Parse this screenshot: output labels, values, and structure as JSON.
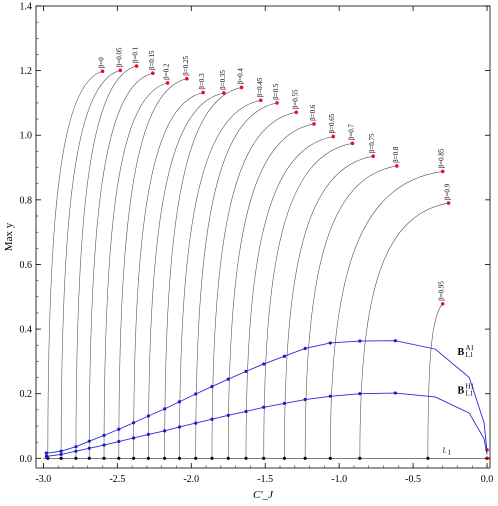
{
  "chart_data": {
    "type": "line",
    "xlabel": "C'_J",
    "ylabel": "Max y",
    "xlim": [
      -3.05,
      0.02
    ],
    "ylim": [
      -0.03,
      1.4
    ],
    "xticks": [
      -3.0,
      -2.5,
      -2.0,
      -1.5,
      -1.0,
      -0.5,
      0.0
    ],
    "xtick_labels": [
      "-3.0",
      "-2.5",
      "-2.0",
      "-1.5",
      "-1.0",
      "-0.5",
      "0.0"
    ],
    "yticks": [
      0.0,
      0.2,
      0.4,
      0.6,
      0.8,
      1.0,
      1.2,
      1.4
    ],
    "ytick_labels": [
      "0.0",
      "0.2",
      "0.4",
      "0.6",
      "0.8",
      "1.0",
      "1.2",
      "1.4"
    ],
    "grid": false,
    "colors": {
      "family_curves": "#555555",
      "endpoints": "#e8101b",
      "bifurcation_curves": "#2b2bd6",
      "bifurcation_points": "#1a1acc",
      "base_points": "#000000"
    },
    "family": {
      "note_labels": "beta value labels printed at the top of each orbit family",
      "curves": [
        {
          "label": "β=0",
          "x_base": -2.97,
          "x_top": -2.6,
          "y_top": 1.198
        },
        {
          "label": "β=0.05",
          "x_base": -2.88,
          "x_top": -2.48,
          "y_top": 1.201
        },
        {
          "label": "β=0.1",
          "x_base": -2.78,
          "x_top": -2.37,
          "y_top": 1.214
        },
        {
          "label": "β=0.15",
          "x_base": -2.69,
          "x_top": -2.26,
          "y_top": 1.192
        },
        {
          "label": "β=0.2",
          "x_base": -2.59,
          "x_top": -2.16,
          "y_top": 1.162
        },
        {
          "label": "β=0.25",
          "x_base": -2.49,
          "x_top": -2.03,
          "y_top": 1.175
        },
        {
          "label": "β=0.3",
          "x_base": -2.39,
          "x_top": -1.92,
          "y_top": 1.132
        },
        {
          "label": "β=0.35",
          "x_base": -2.29,
          "x_top": -1.78,
          "y_top": 1.131
        },
        {
          "label": "β=0.4",
          "x_base": -2.18,
          "x_top": -1.66,
          "y_top": 1.148
        },
        {
          "label": "β=0.45",
          "x_base": -2.08,
          "x_top": -1.53,
          "y_top": 1.108
        },
        {
          "label": "β=0.5",
          "x_base": -1.97,
          "x_top": -1.42,
          "y_top": 1.1
        },
        {
          "label": "β=0.55",
          "x_base": -1.86,
          "x_top": -1.29,
          "y_top": 1.071
        },
        {
          "label": "β=0.6",
          "x_base": -1.75,
          "x_top": -1.17,
          "y_top": 1.035
        },
        {
          "label": "β=0.65",
          "x_base": -1.63,
          "x_top": -1.04,
          "y_top": 0.996
        },
        {
          "label": "β=0.7",
          "x_base": -1.51,
          "x_top": -0.91,
          "y_top": 0.975
        },
        {
          "label": "β=0.75",
          "x_base": -1.37,
          "x_top": -0.77,
          "y_top": 0.935
        },
        {
          "label": "β=0.8",
          "x_base": -1.23,
          "x_top": -0.61,
          "y_top": 0.905
        },
        {
          "label": "β=0.85",
          "x_base": -1.06,
          "x_top": -0.3,
          "y_top": 0.888
        },
        {
          "label": "β=0.9",
          "x_base": -0.86,
          "x_top": -0.26,
          "y_top": 0.79
        },
        {
          "label": "β=0.95",
          "x_base": -0.4,
          "x_top": -0.3,
          "y_top": 0.478
        }
      ]
    },
    "base_line": {
      "label": "L1",
      "y": 0.0,
      "points_x": [
        -2.97,
        -2.88,
        -2.78,
        -2.69,
        -2.59,
        -2.49,
        -2.39,
        -2.29,
        -2.18,
        -2.08,
        -1.97,
        -1.86,
        -1.75,
        -1.63,
        -1.51,
        -1.37,
        -1.23,
        -1.06,
        -0.86,
        -0.4,
        0.0
      ]
    },
    "series": [
      {
        "name": "B^{A1}_{L1}",
        "x": [
          -2.98,
          -2.88,
          -2.78,
          -2.69,
          -2.59,
          -2.49,
          -2.39,
          -2.29,
          -2.18,
          -2.08,
          -1.97,
          -1.86,
          -1.75,
          -1.63,
          -1.51,
          -1.37,
          -1.23,
          -1.06,
          -0.86,
          -0.62,
          -0.35,
          -0.12,
          -0.02,
          0.0
        ],
        "y": [
          0.016,
          0.022,
          0.036,
          0.053,
          0.071,
          0.09,
          0.11,
          0.131,
          0.153,
          0.175,
          0.199,
          0.222,
          0.245,
          0.269,
          0.292,
          0.316,
          0.34,
          0.357,
          0.363,
          0.364,
          0.338,
          0.25,
          0.11,
          0.02
        ],
        "marked_points": 20
      },
      {
        "name": "B^{H1}_{L1}",
        "x": [
          -2.98,
          -2.88,
          -2.78,
          -2.69,
          -2.59,
          -2.49,
          -2.39,
          -2.29,
          -2.18,
          -2.08,
          -1.97,
          -1.86,
          -1.75,
          -1.63,
          -1.51,
          -1.37,
          -1.23,
          -1.06,
          -0.86,
          -0.62,
          -0.35,
          -0.12,
          -0.02,
          0.0
        ],
        "y": [
          0.006,
          0.012,
          0.022,
          0.031,
          0.041,
          0.052,
          0.063,
          0.074,
          0.085,
          0.097,
          0.109,
          0.121,
          0.133,
          0.145,
          0.158,
          0.17,
          0.182,
          0.192,
          0.2,
          0.202,
          0.19,
          0.14,
          0.06,
          0.012
        ],
        "marked_points": 20
      }
    ],
    "series_labels": {
      "A1": {
        "main": "B",
        "sup": "A1",
        "sub": "L1",
        "x": -0.2,
        "y": 0.32
      },
      "H1": {
        "main": "B",
        "sup": "H1",
        "sub": "L1",
        "x": -0.2,
        "y": 0.2
      },
      "L1": {
        "main": "L",
        "sub": "1",
        "x": -0.3,
        "y": 0.018
      }
    },
    "origin_point": {
      "x": 0.0,
      "y": 0.026
    }
  }
}
